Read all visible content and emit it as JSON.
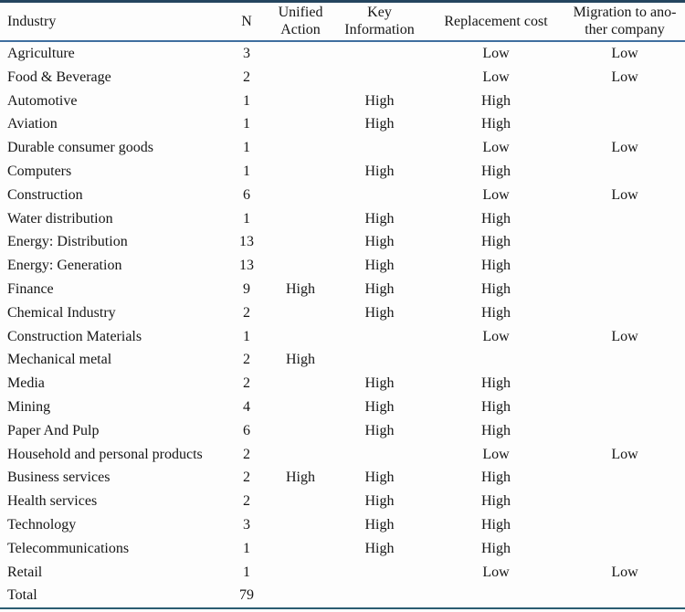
{
  "chart_data": {
    "type": "table",
    "columns": [
      "Industry",
      "N",
      "Unified Action",
      "Key Information",
      "Replacement cost",
      "Migration to another company"
    ],
    "header_display": [
      "Industry",
      "N",
      "Unified\nAction",
      "Key\nInformation",
      "Replacement cost",
      "Migration to ano-\nther company"
    ],
    "rows": [
      [
        "Agriculture",
        "3",
        "",
        "",
        "Low",
        "Low"
      ],
      [
        "Food & Beverage",
        "2",
        "",
        "",
        "Low",
        "Low"
      ],
      [
        "Automotive",
        "1",
        "",
        "High",
        "High",
        ""
      ],
      [
        "Aviation",
        "1",
        "",
        "High",
        "High",
        ""
      ],
      [
        "Durable consumer goods",
        "1",
        "",
        "",
        "Low",
        "Low"
      ],
      [
        "Computers",
        "1",
        "",
        "High",
        "High",
        ""
      ],
      [
        "Construction",
        "6",
        "",
        "",
        "Low",
        "Low"
      ],
      [
        "Water distribution",
        "1",
        "",
        "High",
        "High",
        ""
      ],
      [
        "Energy: Distribution",
        "13",
        "",
        "High",
        "High",
        ""
      ],
      [
        "Energy: Generation",
        "13",
        "",
        "High",
        "High",
        ""
      ],
      [
        "Finance",
        "9",
        "High",
        "High",
        "High",
        ""
      ],
      [
        "Chemical Industry",
        "2",
        "",
        "High",
        "High",
        ""
      ],
      [
        "Construction Materials",
        "1",
        "",
        "",
        "Low",
        "Low"
      ],
      [
        "Mechanical metal",
        "2",
        "High",
        "",
        "",
        ""
      ],
      [
        "Media",
        "2",
        "",
        "High",
        "High",
        ""
      ],
      [
        "Mining",
        "4",
        "",
        "High",
        "High",
        ""
      ],
      [
        "Paper And Pulp",
        "6",
        "",
        "High",
        "High",
        ""
      ],
      [
        "Household and personal products",
        "2",
        "",
        "",
        "Low",
        "Low"
      ],
      [
        "Business services",
        "2",
        "High",
        "High",
        "High",
        ""
      ],
      [
        "Health services",
        "2",
        "",
        "High",
        "High",
        ""
      ],
      [
        "Technology",
        "3",
        "",
        "High",
        "High",
        ""
      ],
      [
        "Telecommunications",
        "1",
        "",
        "High",
        "High",
        ""
      ],
      [
        "Retail",
        "1",
        "",
        "",
        "Low",
        "Low"
      ],
      [
        "Total",
        "79",
        "",
        "",
        "",
        ""
      ]
    ],
    "total_n": 79
  },
  "colors": {
    "top_rule": "#24455f",
    "header_rule": "#3f6f9f",
    "bottom_rule": "#2b5c72",
    "text": "#161616",
    "background": "#fdfdfd"
  }
}
